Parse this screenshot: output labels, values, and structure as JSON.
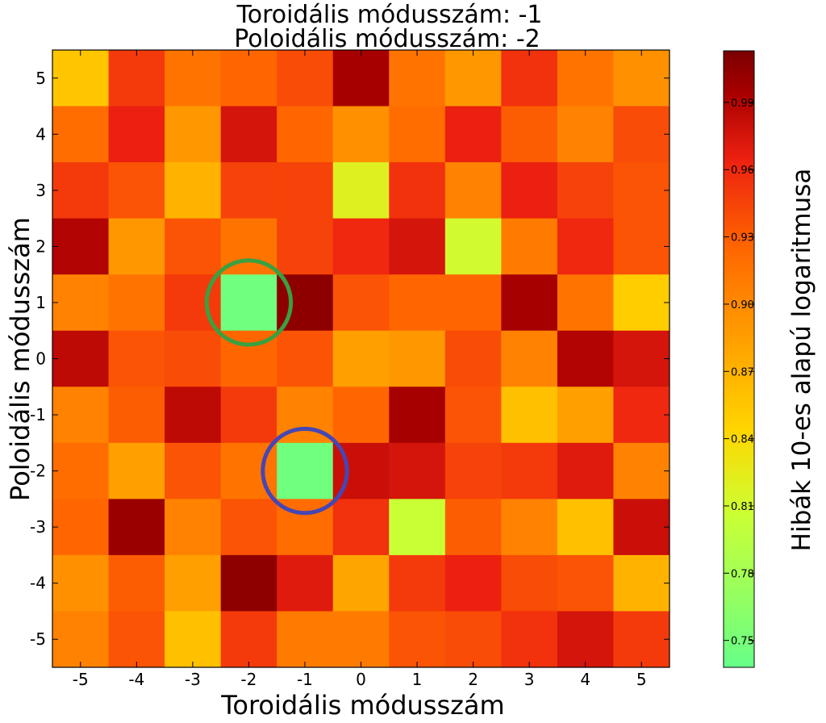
{
  "chart_data": {
    "type": "heatmap",
    "title_lines": [
      "Toroidális módusszám: -1",
      "Poloidális módusszám: -2"
    ],
    "xlabel": "Toroidális módusszám",
    "ylabel": "Poloidális módusszám",
    "x": [
      -5,
      -4,
      -3,
      -2,
      -1,
      0,
      1,
      2,
      3,
      4,
      5
    ],
    "y": [
      5,
      4,
      3,
      2,
      1,
      0,
      -1,
      -2,
      -3,
      -4,
      -5
    ],
    "values": [
      [
        0.855,
        0.95,
        0.915,
        0.925,
        0.94,
        0.995,
        0.915,
        0.89,
        0.955,
        0.915,
        0.895
      ],
      [
        0.92,
        0.965,
        0.89,
        0.975,
        0.925,
        0.895,
        0.92,
        0.965,
        0.93,
        0.905,
        0.94
      ],
      [
        0.95,
        0.935,
        0.87,
        0.945,
        0.945,
        0.82,
        0.955,
        0.905,
        0.965,
        0.945,
        0.935
      ],
      [
        0.99,
        0.89,
        0.935,
        0.915,
        0.945,
        0.96,
        0.975,
        0.81,
        0.91,
        0.96,
        0.935
      ],
      [
        0.905,
        0.915,
        0.95,
        0.745,
        1.005,
        0.935,
        0.925,
        0.925,
        0.995,
        0.915,
        0.85
      ],
      [
        0.985,
        0.935,
        0.94,
        0.925,
        0.935,
        0.885,
        0.89,
        0.94,
        0.905,
        0.99,
        0.975
      ],
      [
        0.905,
        0.93,
        0.985,
        0.95,
        0.905,
        0.925,
        0.995,
        0.935,
        0.86,
        0.885,
        0.96
      ],
      [
        0.92,
        0.885,
        0.935,
        0.915,
        0.745,
        0.98,
        0.975,
        0.945,
        0.95,
        0.97,
        0.905
      ],
      [
        0.925,
        1.0,
        0.905,
        0.935,
        0.92,
        0.955,
        0.805,
        0.93,
        0.905,
        0.86,
        0.98
      ],
      [
        0.895,
        0.93,
        0.885,
        1.005,
        0.97,
        0.88,
        0.95,
        0.965,
        0.94,
        0.935,
        0.87
      ],
      [
        0.905,
        0.935,
        0.86,
        0.95,
        0.91,
        0.91,
        0.935,
        0.94,
        0.955,
        0.975,
        0.95
      ]
    ],
    "colorbar": {
      "label": "Hibák 10-es alapú logaritmusa",
      "range": [
        0.738,
        1.013
      ],
      "ticks": [
        "0.75",
        "0.78",
        "0.81",
        "0.84",
        "0.87",
        "0.90",
        "0.93",
        "0.96",
        "0.99"
      ],
      "tick_values": [
        0.75,
        0.78,
        0.81,
        0.84,
        0.87,
        0.9,
        0.93,
        0.96,
        0.99
      ],
      "colormap": [
        [
          "#66ff88",
          0.0
        ],
        [
          "#ccff33",
          0.25
        ],
        [
          "#ffd700",
          0.38
        ],
        [
          "#ff9900",
          0.55
        ],
        [
          "#ff6600",
          0.68
        ],
        [
          "#ee2211",
          0.82
        ],
        [
          "#aa0000",
          0.93
        ],
        [
          "#7a0000",
          1.0
        ]
      ]
    },
    "markers": [
      {
        "x": -2,
        "y": 1,
        "color": "#3aa040"
      },
      {
        "x": -1,
        "y": -2,
        "color": "#4646b4"
      }
    ],
    "grid": false
  }
}
